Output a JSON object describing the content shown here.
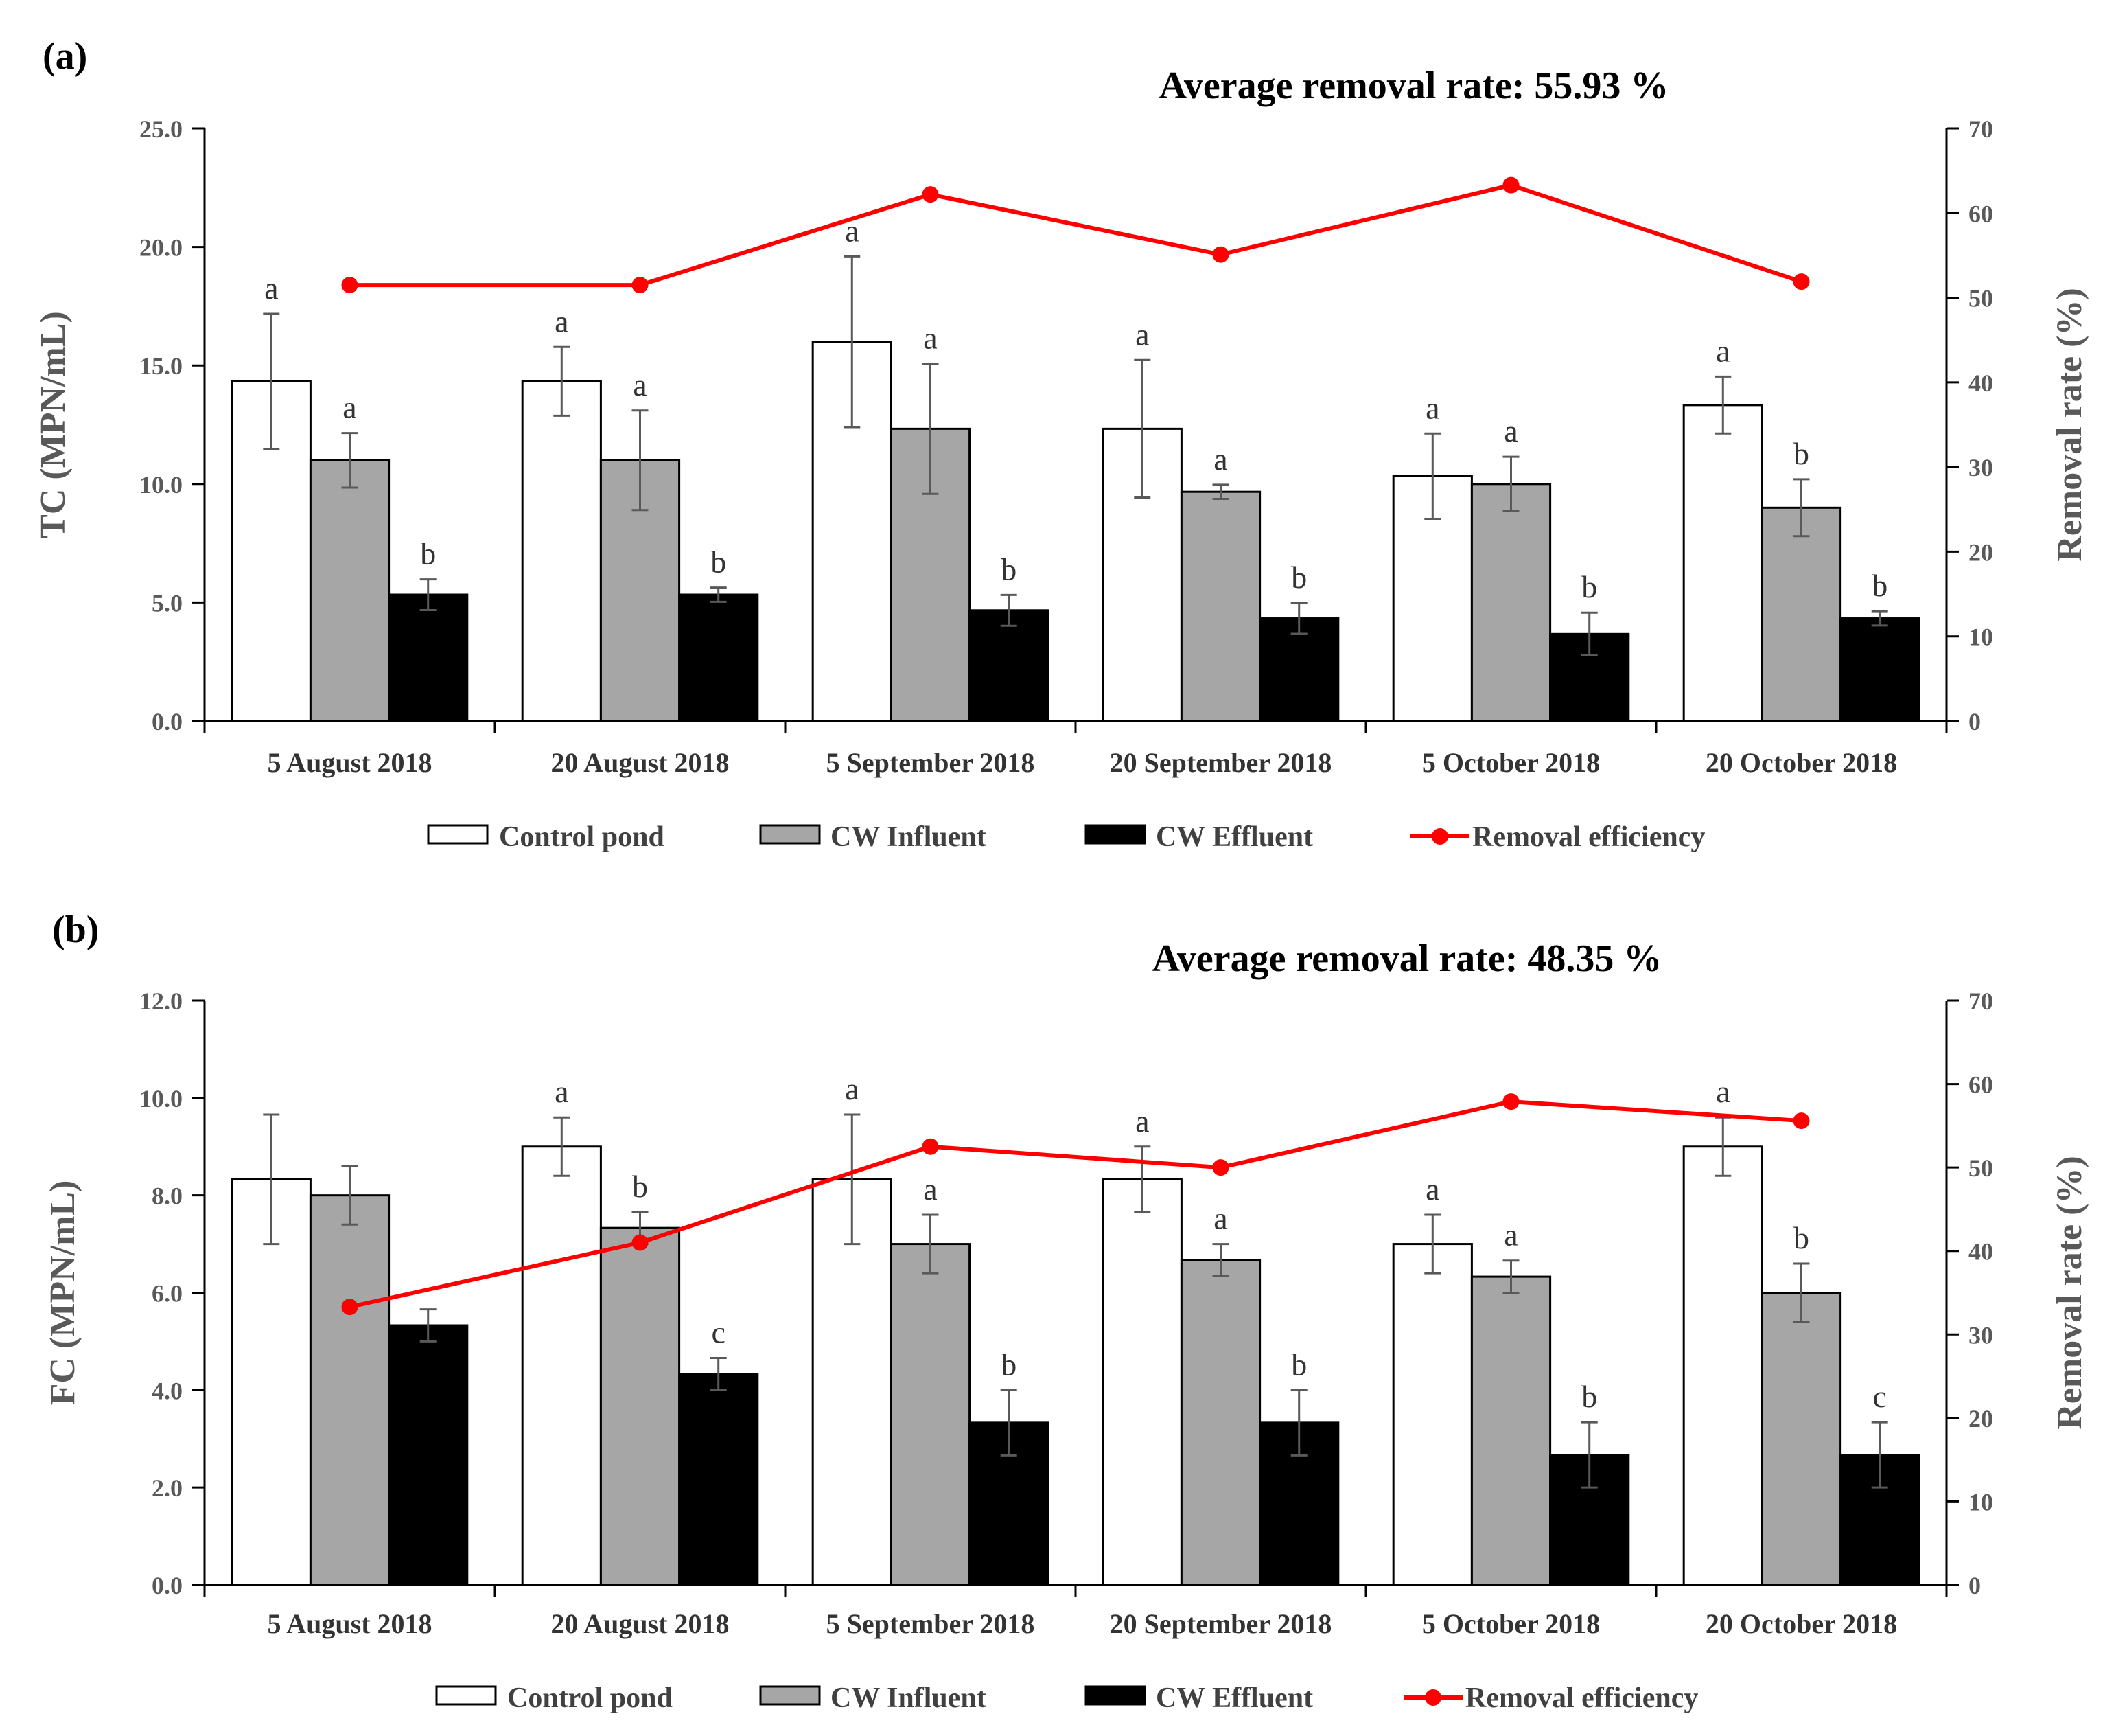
{
  "chart_data": [
    {
      "type": "bar",
      "panel_label": "(a)",
      "title": "Average removal rate: 55.93 %",
      "categories": [
        "5 August 2018",
        "20 August 2018",
        "5 September 2018",
        "20 September 2018",
        "5 October 2018",
        "20 October 2018"
      ],
      "ylabel": "TC (MPN/mL)",
      "y2label": "Removal rate (%)",
      "ylim": [
        0,
        25
      ],
      "y_ticks": [
        "0.0",
        "5.0",
        "10.0",
        "15.0",
        "20.0",
        "25.0"
      ],
      "y2lim": [
        0,
        70
      ],
      "y2_ticks": [
        "0",
        "10",
        "20",
        "30",
        "40",
        "50",
        "60",
        "70"
      ],
      "series": [
        {
          "name": "Control pond",
          "color": "#ffffff",
          "values": [
            14.33,
            14.33,
            16.0,
            12.33,
            10.33,
            13.33
          ],
          "errors": [
            2.85,
            1.45,
            3.6,
            2.9,
            1.8,
            1.2
          ],
          "letters": [
            "a",
            "a",
            "a",
            "a",
            "a",
            "a"
          ]
        },
        {
          "name": "CW Influent",
          "color": "#a6a6a6",
          "values": [
            11.0,
            11.0,
            12.33,
            9.67,
            10.0,
            9.0
          ],
          "errors": [
            1.15,
            2.1,
            2.75,
            0.3,
            1.15,
            1.2
          ],
          "letters": [
            "a",
            "a",
            "a",
            "a",
            "a",
            "b"
          ]
        },
        {
          "name": "CW Effluent",
          "color": "#000000",
          "values": [
            5.33,
            5.33,
            4.67,
            4.33,
            3.67,
            4.33
          ],
          "errors": [
            0.65,
            0.3,
            0.65,
            0.65,
            0.9,
            0.3
          ],
          "letters": [
            "b",
            "b",
            "b",
            "b",
            "b",
            "b"
          ]
        }
      ],
      "line": {
        "name": "Removal efficiency",
        "color": "#ff0000",
        "values": [
          51.5,
          51.5,
          62.2,
          55.1,
          63.3,
          51.9
        ]
      },
      "legend_position": "bottom"
    },
    {
      "type": "bar",
      "panel_label": "(b)",
      "title": "Average removal rate: 48.35 %",
      "categories": [
        "5 August 2018",
        "20 August 2018",
        "5 September 2018",
        "20 September 2018",
        "5 October 2018",
        "20 October 2018"
      ],
      "ylabel": "FC (MPN/mL)",
      "y2label": "Removal rate (%)",
      "ylim": [
        0,
        12
      ],
      "y_ticks": [
        "0.0",
        "2.0",
        "4.0",
        "6.0",
        "8.0",
        "10.0",
        "12.0"
      ],
      "y2lim": [
        0,
        70
      ],
      "y2_ticks": [
        "0",
        "10",
        "20",
        "30",
        "40",
        "50",
        "60",
        "70"
      ],
      "series": [
        {
          "name": "Control pond",
          "color": "#ffffff",
          "values": [
            8.33,
            9.0,
            8.33,
            8.33,
            7.0,
            9.0
          ],
          "errors": [
            1.33,
            0.6,
            1.33,
            0.67,
            0.6,
            0.6
          ],
          "letters": [
            "",
            "a",
            "a",
            "a",
            "a",
            "a"
          ]
        },
        {
          "name": "CW Influent",
          "color": "#a6a6a6",
          "values": [
            8.0,
            7.33,
            7.0,
            6.67,
            6.33,
            6.0
          ],
          "errors": [
            0.6,
            0.33,
            0.6,
            0.33,
            0.33,
            0.6
          ],
          "letters": [
            "",
            "b",
            "a",
            "a",
            "a",
            "b"
          ]
        },
        {
          "name": "CW Effluent",
          "color": "#000000",
          "values": [
            5.33,
            4.33,
            3.33,
            3.33,
            2.67,
            2.67
          ],
          "errors": [
            0.33,
            0.33,
            0.67,
            0.67,
            0.67,
            0.67
          ],
          "letters": [
            "",
            "c",
            "b",
            "b",
            "b",
            "c"
          ]
        }
      ],
      "line": {
        "name": "Removal efficiency",
        "color": "#ff0000",
        "values": [
          33.3,
          41.0,
          52.5,
          50.0,
          57.9,
          55.6
        ]
      },
      "legend_position": "bottom"
    }
  ]
}
